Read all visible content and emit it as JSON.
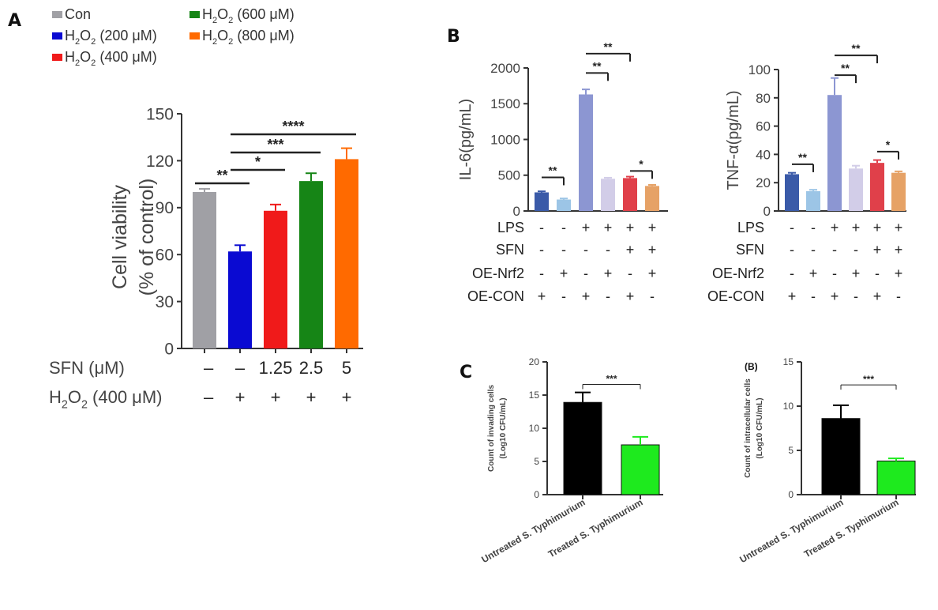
{
  "panels": {
    "a": "A",
    "b": "B",
    "c": "C",
    "c2": "(B)"
  },
  "colors": {
    "con": "#a0a0a5",
    "h200": "#0a0ad2",
    "h400": "#f01a1a",
    "h600": "#168516",
    "h800": "#ff6a00",
    "B1": "#3a5aa8",
    "B2": "#9cc5e6",
    "B3": "#8c96d2",
    "B4": "#d2cde8",
    "B5": "#e0404a",
    "B6": "#e6a266",
    "black": "#000000",
    "green": "#1eea1e"
  },
  "chart_data": [
    {
      "id": "A",
      "type": "bar",
      "legend": [
        {
          "label": "Con",
          "color_key": "con"
        },
        {
          "label": "H2O2 (200 μM)",
          "prefix": "H",
          "sub": "2",
          "mid": "O",
          "sub2": "2",
          "rest": " (200 μM)",
          "color_key": "h200"
        },
        {
          "label": "H2O2 (400 μM)",
          "prefix": "H",
          "sub": "2",
          "mid": "O",
          "sub2": "2",
          "rest": " (400 μM)",
          "color_key": "h400"
        },
        {
          "label": "H2O2 (600 μM)",
          "prefix": "H",
          "sub": "2",
          "mid": "O",
          "sub2": "2",
          "rest": " (600 μM)",
          "color_key": "h600"
        },
        {
          "label": "H2O2 (800 μM)",
          "prefix": "H",
          "sub": "2",
          "mid": "O",
          "sub2": "2",
          "rest": " (800 μM)",
          "color_key": "h800"
        }
      ],
      "values": [
        100,
        62,
        88,
        107,
        121
      ],
      "errors": [
        2,
        4,
        4,
        5,
        7
      ],
      "colors": [
        "con",
        "h200",
        "h400",
        "h600",
        "h800"
      ],
      "ylabel": "Cell viability",
      "ylabel2": "(% of control)",
      "ylim": [
        0,
        150
      ],
      "yticks": [
        0,
        30,
        60,
        90,
        120,
        150
      ],
      "sig": [
        {
          "from": 0,
          "to": 1,
          "label": "**"
        },
        {
          "from": 1,
          "to": 2,
          "label": "*"
        },
        {
          "from": 1,
          "to": 3,
          "label": "***"
        },
        {
          "from": 1,
          "to": 4,
          "label": "****"
        }
      ],
      "conditions": [
        {
          "label": "SFN (μM)",
          "values": [
            "–",
            "–",
            "1.25",
            "2.5",
            "5"
          ]
        },
        {
          "label": "H2O2 (400 μM)",
          "prefix": "H",
          "sub": "2",
          "mid": "O",
          "sub2": "2",
          "rest": " (400 μM)",
          "values": [
            "–",
            "+",
            "+",
            "+",
            "+"
          ]
        }
      ]
    },
    {
      "id": "B1",
      "type": "bar",
      "values": [
        260,
        160,
        1630,
        450,
        460,
        350
      ],
      "errors": [
        15,
        15,
        70,
        15,
        20,
        15
      ],
      "colors": [
        "B1",
        "B2",
        "B3",
        "B4",
        "B5",
        "B6"
      ],
      "ylabel": "IL-6(pg/mL)",
      "ylim": [
        0,
        2000
      ],
      "yticks": [
        0,
        500,
        1000,
        1500,
        2000
      ],
      "sig": [
        {
          "from": 0,
          "to": 1,
          "label": "**",
          "y": 470
        },
        {
          "from": 2,
          "to": 3,
          "label": "**",
          "y": 1930
        },
        {
          "from": 2,
          "to": 4,
          "label": "**",
          "y": 2200
        },
        {
          "from": 4,
          "to": 5,
          "label": "*",
          "y": 560
        }
      ],
      "conditions": [
        {
          "label": "LPS",
          "values": [
            "-",
            "-",
            "+",
            "+",
            "+",
            "+"
          ]
        },
        {
          "label": "SFN",
          "values": [
            "-",
            "-",
            "-",
            "-",
            "+",
            "+"
          ]
        },
        {
          "label": "OE-Nrf2",
          "values": [
            "-",
            "+",
            "-",
            "+",
            "-",
            "+"
          ]
        },
        {
          "label": "OE-CON",
          "values": [
            "+",
            "-",
            "+",
            "-",
            "+",
            "-"
          ]
        }
      ]
    },
    {
      "id": "B2",
      "type": "bar",
      "values": [
        26,
        14,
        82,
        30,
        34,
        27
      ],
      "errors": [
        1,
        1,
        12,
        2,
        2,
        1
      ],
      "colors": [
        "B1",
        "B2",
        "B3",
        "B4",
        "B5",
        "B6"
      ],
      "ylabel": "TNF-α(pg/mL)",
      "ylim": [
        0,
        100
      ],
      "yticks": [
        0,
        20,
        40,
        60,
        80,
        100
      ],
      "sig": [
        {
          "from": 0,
          "to": 1,
          "label": "**",
          "y": 33
        },
        {
          "from": 2,
          "to": 3,
          "label": "**",
          "y": 96
        },
        {
          "from": 2,
          "to": 4,
          "label": "**",
          "y": 110
        },
        {
          "from": 4,
          "to": 5,
          "label": "*",
          "y": 42
        }
      ],
      "conditions": [
        {
          "label": "LPS",
          "values": [
            "-",
            "-",
            "+",
            "+",
            "+",
            "+"
          ]
        },
        {
          "label": "SFN",
          "values": [
            "-",
            "-",
            "-",
            "-",
            "+",
            "+"
          ]
        },
        {
          "label": "OE-Nrf2",
          "values": [
            "-",
            "+",
            "-",
            "+",
            "-",
            "+"
          ]
        },
        {
          "label": "OE-CON",
          "values": [
            "+",
            "-",
            "+",
            "-",
            "+",
            "-"
          ]
        }
      ]
    },
    {
      "id": "C1",
      "type": "bar",
      "categories": [
        "Untreated S. Typhimurium",
        "Treated S. Typhimurium"
      ],
      "values": [
        13.9,
        7.5
      ],
      "errors": [
        1.5,
        1.2
      ],
      "colors": [
        "black",
        "green"
      ],
      "ylabel": "Count of invading cells",
      "ylabel2": "(Log10 CFU/mL)",
      "ylim": [
        0,
        20
      ],
      "yticks": [
        0,
        5,
        10,
        15,
        20
      ],
      "sig": [
        {
          "from": 0,
          "to": 1,
          "label": "***",
          "y": 16.6
        }
      ]
    },
    {
      "id": "C2",
      "type": "bar",
      "categories": [
        "Untreated S. Typhimurium",
        "Treated S. Typhimurium"
      ],
      "values": [
        8.6,
        3.8
      ],
      "errors": [
        1.5,
        0.3
      ],
      "colors": [
        "black",
        "green"
      ],
      "ylabel": "Count of intracellular cells",
      "ylabel2": "(Log10 CFU/mL)",
      "ylim": [
        0,
        15
      ],
      "yticks": [
        0,
        5,
        10,
        15
      ],
      "sig": [
        {
          "from": 0,
          "to": 1,
          "label": "***",
          "y": 12.4
        }
      ]
    }
  ]
}
